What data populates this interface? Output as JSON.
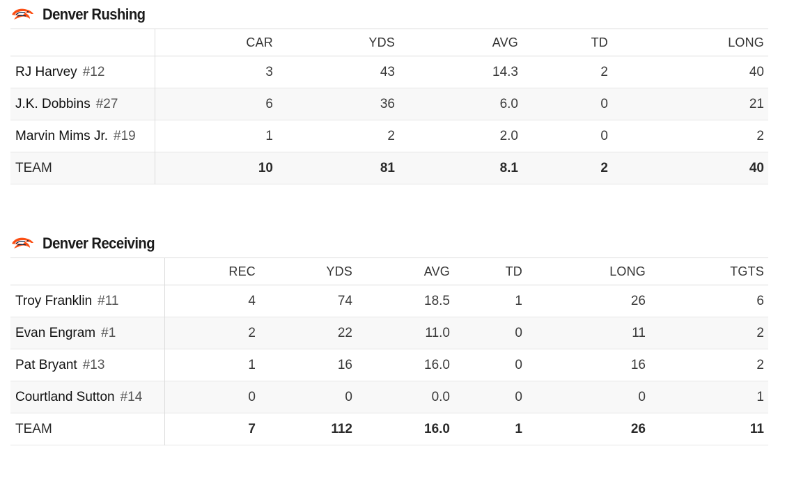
{
  "rushing": {
    "title": "Denver Rushing",
    "logo_icon": "broncos-logo",
    "headers": [
      "CAR",
      "YDS",
      "AVG",
      "TD",
      "LONG"
    ],
    "players": [
      {
        "name": "RJ Harvey",
        "number": "#12",
        "stats": [
          "3",
          "43",
          "14.3",
          "2",
          "40"
        ]
      },
      {
        "name": "J.K. Dobbins",
        "number": "#27",
        "stats": [
          "6",
          "36",
          "6.0",
          "0",
          "21"
        ]
      },
      {
        "name": "Marvin Mims Jr.",
        "number": "#19",
        "stats": [
          "1",
          "2",
          "2.0",
          "0",
          "2"
        ]
      }
    ],
    "team": {
      "label": "TEAM",
      "stats": [
        "10",
        "81",
        "8.1",
        "2",
        "40"
      ]
    }
  },
  "receiving": {
    "title": "Denver Receiving",
    "logo_icon": "broncos-logo",
    "headers": [
      "REC",
      "YDS",
      "AVG",
      "TD",
      "LONG",
      "TGTS"
    ],
    "players": [
      {
        "name": "Troy Franklin",
        "number": "#11",
        "stats": [
          "4",
          "74",
          "18.5",
          "1",
          "26",
          "6"
        ]
      },
      {
        "name": "Evan Engram",
        "number": "#1",
        "stats": [
          "2",
          "22",
          "11.0",
          "0",
          "11",
          "2"
        ]
      },
      {
        "name": "Pat Bryant",
        "number": "#13",
        "stats": [
          "1",
          "16",
          "16.0",
          "0",
          "16",
          "2"
        ]
      },
      {
        "name": "Courtland Sutton",
        "number": "#14",
        "stats": [
          "0",
          "0",
          "0.0",
          "0",
          "0",
          "1"
        ]
      }
    ],
    "team": {
      "label": "TEAM",
      "stats": [
        "7",
        "112",
        "16.0",
        "1",
        "26",
        "11"
      ]
    }
  },
  "colors": {
    "logo_orange": "#fb4f14",
    "logo_navy": "#0a2343",
    "row_alt": "#f8f8f8",
    "border": "#dcdcdc"
  }
}
